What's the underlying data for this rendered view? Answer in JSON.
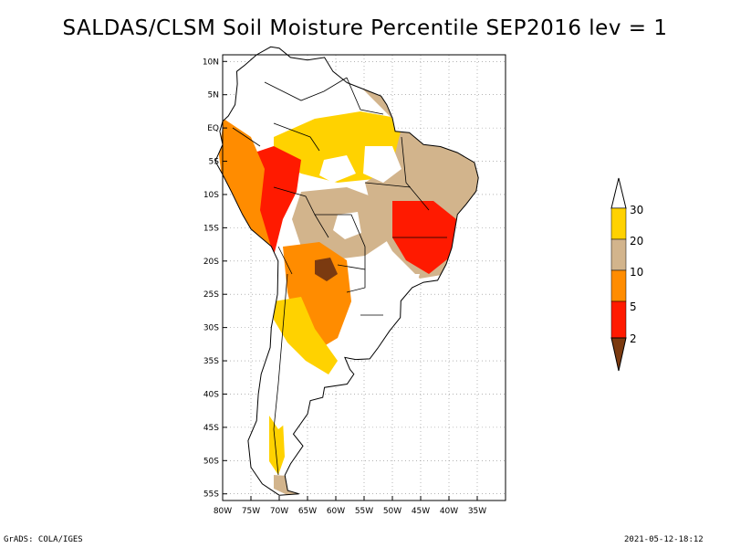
{
  "title": "SALDAS/CLSM Soil Moisture Percentile SEP2016 lev = 1",
  "footer": {
    "left": "GrADS: COLA/IGES",
    "right": "2021-05-12-18:12"
  },
  "map": {
    "lon_range": [
      -80,
      -30
    ],
    "lat_range": [
      -56,
      11
    ],
    "lat_ticks": [
      "10N",
      "5N",
      "EQ",
      "5S",
      "10S",
      "15S",
      "20S",
      "25S",
      "30S",
      "35S",
      "40S",
      "45S",
      "50S",
      "55S"
    ],
    "lon_ticks": [
      "80W",
      "75W",
      "70W",
      "65W",
      "60W",
      "55W",
      "50W",
      "45W",
      "40W",
      "35W"
    ]
  },
  "colorbar": {
    "labels": [
      "30",
      "20",
      "10",
      "5",
      "2"
    ],
    "colors": {
      "above30": "#ffffff",
      "c20_30": "#ffd200",
      "c10_20": "#d2b48c",
      "c5_10": "#ff8c00",
      "c2_5": "#ff1a00",
      "below2": "#7b3a10"
    }
  }
}
